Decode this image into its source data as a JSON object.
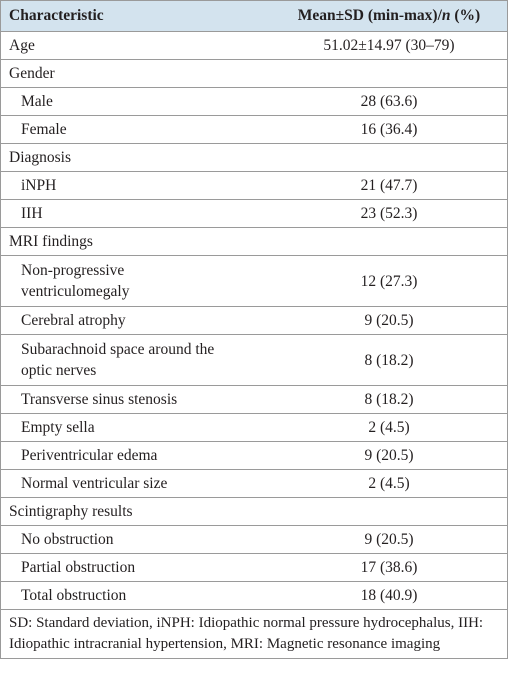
{
  "table": {
    "header": {
      "characteristic": "Characteristic",
      "value": {
        "pre": "Mean±SD (min-max)/",
        "italic": "n",
        "post": " (%)"
      }
    },
    "rows": [
      {
        "label": "Age",
        "value": "51.02±14.97 (30–79)"
      },
      {
        "label": "Gender",
        "items": [
          {
            "label": "Male",
            "value": "28 (63.6)"
          },
          {
            "label": "Female",
            "value": "16 (36.4)"
          }
        ]
      },
      {
        "label": "Diagnosis",
        "items": [
          {
            "label": "iNPH",
            "value": "21 (47.7)"
          },
          {
            "label": "IIH",
            "value": "23 (52.3)"
          }
        ]
      },
      {
        "label": "MRI findings",
        "items": [
          {
            "label": "Non-progressive ventriculomegaly",
            "value": "12 (27.3)"
          },
          {
            "label": "Cerebral atrophy",
            "value": "9 (20.5)"
          },
          {
            "label": "Subarachnoid space around the optic nerves",
            "value": "8 (18.2)"
          },
          {
            "label": "Transverse sinus stenosis",
            "value": "8 (18.2)"
          },
          {
            "label": "Empty sella",
            "value": "2 (4.5)"
          },
          {
            "label": "Periventricular edema",
            "value": "9 (20.5)"
          },
          {
            "label": "Normal ventricular size",
            "value": "2 (4.5)"
          }
        ]
      },
      {
        "label": "Scintigraphy results",
        "items": [
          {
            "label": "No obstruction",
            "value": "9 (20.5)"
          },
          {
            "label": "Partial obstruction",
            "value": "17 (38.6)"
          },
          {
            "label": "Total obstruction",
            "value": "18 (40.9)"
          }
        ]
      }
    ],
    "footnote": "SD: Standard deviation, iNPH: Idiopathic normal pressure hydrocephalus, IIH: Idiopathic intracranial hypertension, MRI: Magnetic resonance imaging"
  }
}
